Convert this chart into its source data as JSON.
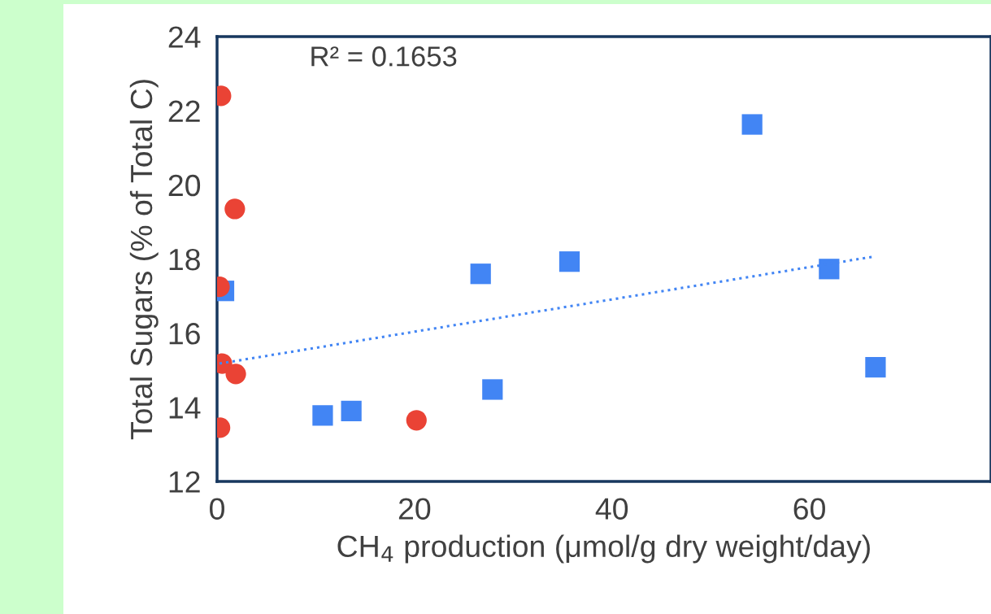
{
  "chart_data": {
    "type": "scatter",
    "xlabel": "CH$_{4}$ production (μmol/g dry weight/day)",
    "ylabel": "Total Sugars (% of Total C)",
    "annotations": [
      "R² = 0.1653"
    ],
    "series": [
      {
        "marker": "circle",
        "color": "#ea4335",
        "x": [
          0.4,
          1.8,
          0.25,
          0.5,
          1.9,
          0.3,
          20.2
        ],
        "values": [
          22.4,
          19.35,
          17.25,
          15.18,
          14.9,
          13.45,
          13.65
        ]
      },
      {
        "marker": "square",
        "color": "#4285f4",
        "x": [
          0.7,
          10.7,
          13.6,
          26.7,
          27.9,
          35.7,
          54.2,
          62.0,
          66.7
        ],
        "values": [
          17.14,
          13.78,
          13.9,
          17.6,
          14.48,
          17.93,
          21.63,
          17.73,
          15.08
        ]
      },
      {
        "type": "line",
        "marker": "none",
        "line_style": "dotted",
        "color": "#4285f4",
        "x": [
          0.25,
          66.4
        ],
        "values": [
          15.18,
          18.06
        ]
      }
    ],
    "xlim": [
      0,
      78.4
    ],
    "xticks": [
      0,
      20,
      40,
      60
    ],
    "ylim": [
      12,
      24
    ],
    "yticks": [
      12,
      14,
      16,
      18,
      20,
      22,
      24
    ],
    "grid": false,
    "legend": false
  }
}
